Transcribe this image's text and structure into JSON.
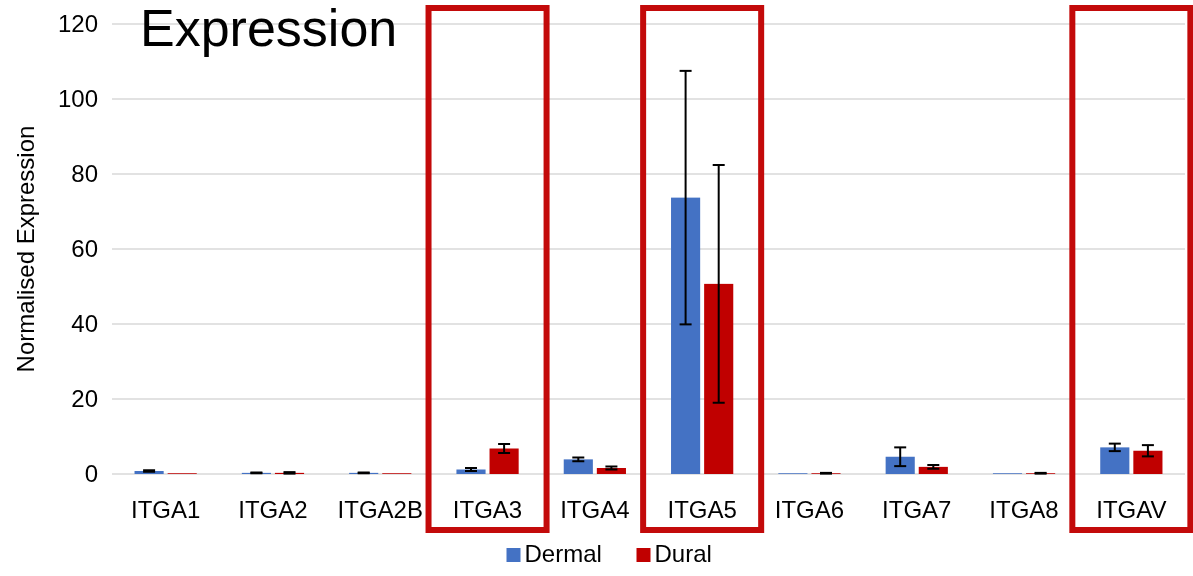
{
  "chart_data": {
    "type": "bar",
    "title": "Expression",
    "ylabel": "Normalised Expression",
    "categories": [
      "ITGA1",
      "ITGA2",
      "ITGA2B",
      "ITGA3",
      "ITGA4",
      "ITGA5",
      "ITGA6",
      "ITGA7",
      "ITGA8",
      "ITGAV"
    ],
    "series": [
      {
        "name": "Dermal",
        "color": "#4472c4",
        "values": [
          0.8,
          0.3,
          0.3,
          1.2,
          3.9,
          73.7,
          0.2,
          4.6,
          0.2,
          7.1
        ],
        "errors": [
          0.2,
          0.1,
          0.1,
          0.4,
          0.5,
          33.8,
          null,
          2.5,
          null,
          1.0
        ]
      },
      {
        "name": "Dural",
        "color": "#c00000",
        "values": [
          0.2,
          0.3,
          0.2,
          6.8,
          1.6,
          50.7,
          0.2,
          1.9,
          0.2,
          6.2
        ],
        "errors": [
          null,
          0.2,
          null,
          1.2,
          0.4,
          31.7,
          0.1,
          0.5,
          0.1,
          1.5
        ]
      }
    ],
    "ylim": [
      0,
      120
    ],
    "yticks": [
      0,
      20,
      40,
      60,
      80,
      100,
      120
    ],
    "grid": "y",
    "legend": "bottom"
  }
}
